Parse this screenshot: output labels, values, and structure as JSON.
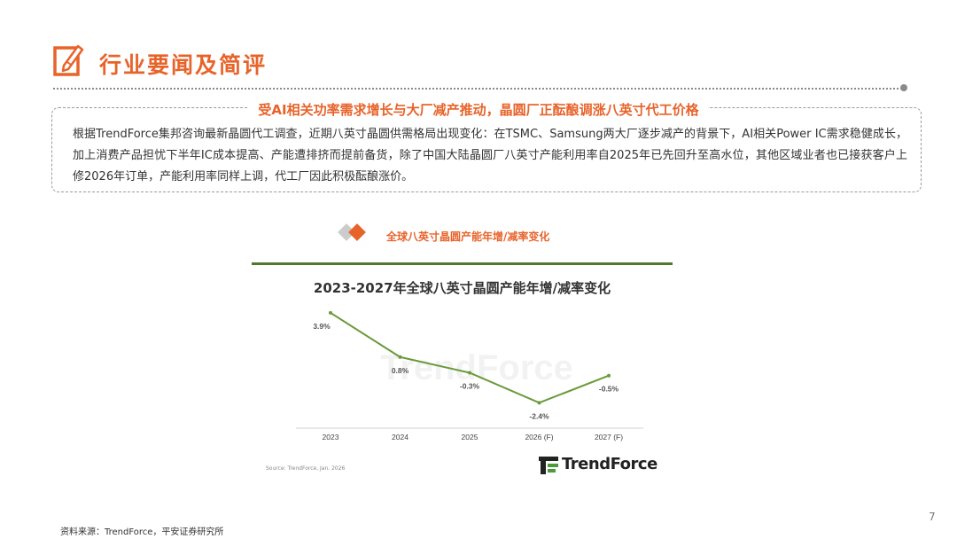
{
  "header": {
    "title": "行业要闻及简评",
    "icon": "pencil-note-icon",
    "accent_color": "#e8632a"
  },
  "highlight": {
    "title": "受AI相关功率需求增长与大厂减产推动，晶圆厂正酝酿调涨八英寸代工价格",
    "body": "根据TrendForce集邦咨询最新晶圆代工调查，近期八英寸晶圆供需格局出现变化：在TSMC、Samsung两大厂逐步减产的背景下，AI相关Power IC需求稳健成长，加上消费产品担忧下半年IC成本提高、产能遭排挤而提前备货，除了中国大陆晶圆厂八英寸产能利用率自2025年已先回升至高水位，其他区域业者也已接获客户上修2026年订单，产能利用率同样上调，代工厂因此积极酝酿涨价。"
  },
  "figure": {
    "subtitle": "全球八英寸晶圆产能年增/减率变化",
    "source_note": "Source: TrendForce, Jan. 2026",
    "brand": "TrendForce",
    "watermark": "TrendForce"
  },
  "chart_data": {
    "type": "line",
    "title": "2023-2027年全球八英寸晶圆产能年增/减率变化",
    "categories": [
      "2023",
      "2024",
      "2025",
      "2026 (F)",
      "2027 (F)"
    ],
    "values": [
      3.9,
      0.8,
      -0.3,
      -2.4,
      -0.5
    ],
    "labels": [
      "3.9%",
      "0.8%",
      "-0.3%",
      "-2.4%",
      "-0.5%"
    ],
    "xlabel": "",
    "ylabel": "",
    "ylim": [
      -3.0,
      4.2
    ],
    "grid": false,
    "line_color": "#6a9a3a"
  },
  "footer": {
    "source": "资料来源：TrendForce，平安证券研究所",
    "page": "7"
  }
}
